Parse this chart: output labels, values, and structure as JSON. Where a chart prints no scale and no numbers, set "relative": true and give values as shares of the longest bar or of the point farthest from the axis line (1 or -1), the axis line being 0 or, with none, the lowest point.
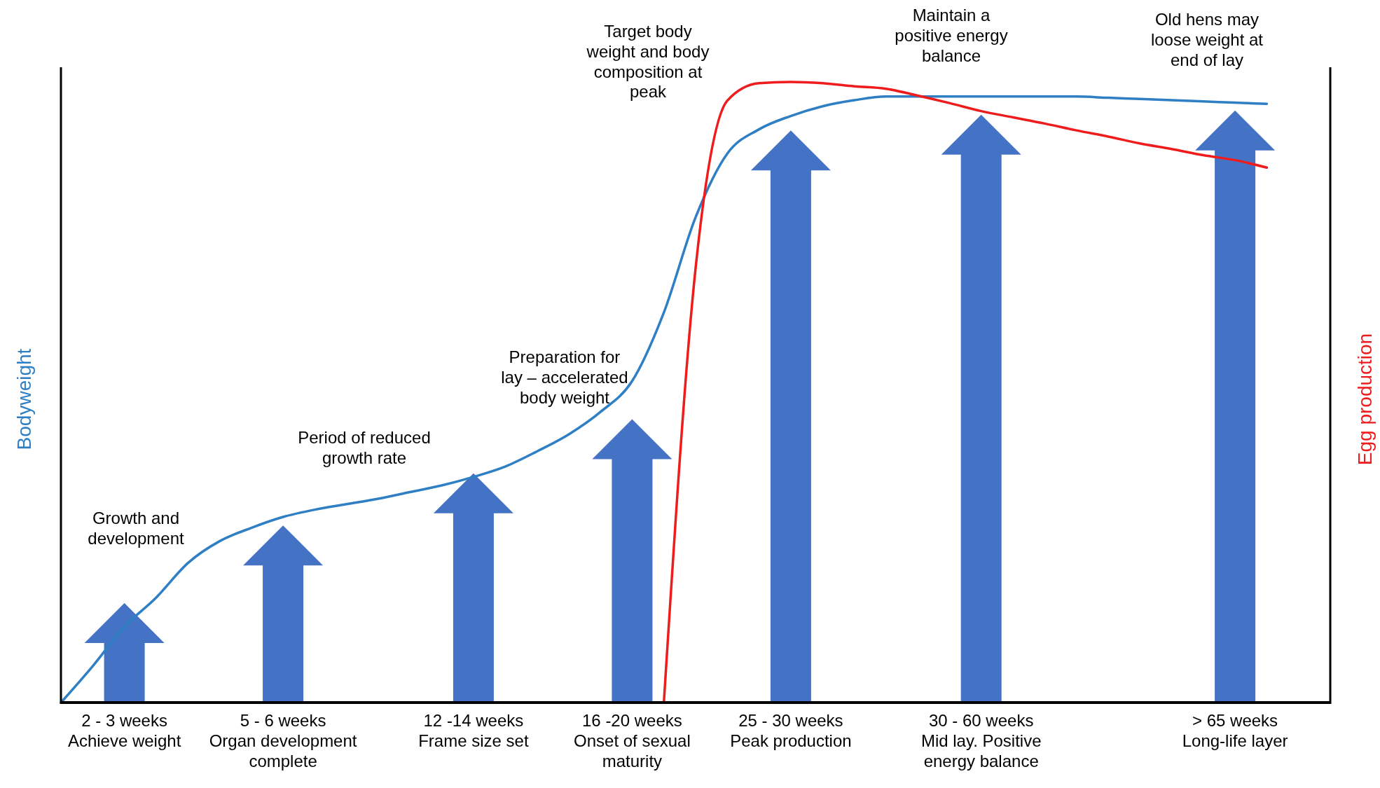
{
  "chart_data": {
    "type": "line",
    "relative": true,
    "ylabel": "Bodyweight",
    "y2label": "Egg production",
    "categories": [
      null,
      null,
      "2 - 3 weeks\nAchieve weight",
      null,
      null,
      null,
      null,
      "5 - 6 weeks\nOrgan development\ncomplete",
      null,
      null,
      null,
      null,
      null,
      "12 -14  weeks\nFrame size set",
      null,
      null,
      null,
      null,
      "16 -20  weeks\nOnset of sexual\nmaturity",
      null,
      null,
      null,
      null,
      "25 - 30  weeks\nPeak production",
      null,
      null,
      null,
      null,
      null,
      "30 - 60  weeks\nMid lay. Positive\nenergy balance",
      null,
      null,
      null,
      null,
      null,
      null,
      null,
      "> 65 weeks\nLong-life layer",
      null,
      null,
      null
    ],
    "tick_labels": "x",
    "series": [
      {
        "color": "#2e7fc4",
        "values": [
          0,
          0.06,
          0.125,
          0.173,
          0.23,
          0.266,
          0.288,
          0.306,
          0.318,
          0.327,
          0.336,
          0.347,
          0.358,
          0.372,
          0.389,
          0.414,
          0.442,
          0.479,
          0.53,
          0.643,
          0.8,
          0.905,
          0.945,
          0.967,
          0.983,
          0.993,
          0.999,
          0.999,
          0.999,
          0.999,
          0.999,
          0.999,
          0.999,
          0.997,
          0.995,
          0.993,
          0.991,
          0.989,
          0.987,
          null,
          null
        ]
      },
      {
        "color": "#ee1c1c",
        "axis": "y2",
        "values": [
          null,
          null,
          null,
          null,
          null,
          null,
          null,
          null,
          null,
          null,
          null,
          null,
          null,
          null,
          null,
          null,
          null,
          null,
          null,
          0,
          0.7,
          0.97,
          0.998,
          1,
          0.998,
          0.993,
          0.989,
          0.978,
          0.966,
          0.953,
          0.943,
          0.933,
          0.922,
          0.912,
          0.901,
          0.892,
          0.882,
          0.874,
          0.862,
          null,
          null
        ]
      }
    ],
    "annotations": [
      "Growth and\ndevelopment",
      "Period of reduced\ngrowth rate",
      "Preparation for\nlay – accelerated\nbody weight",
      "Target body\nweight and body\ncomposition at\npeak",
      "Maintain a\npositive energy\nbalance",
      "Old hens may\nloose weight at\nend of lay"
    ]
  }
}
